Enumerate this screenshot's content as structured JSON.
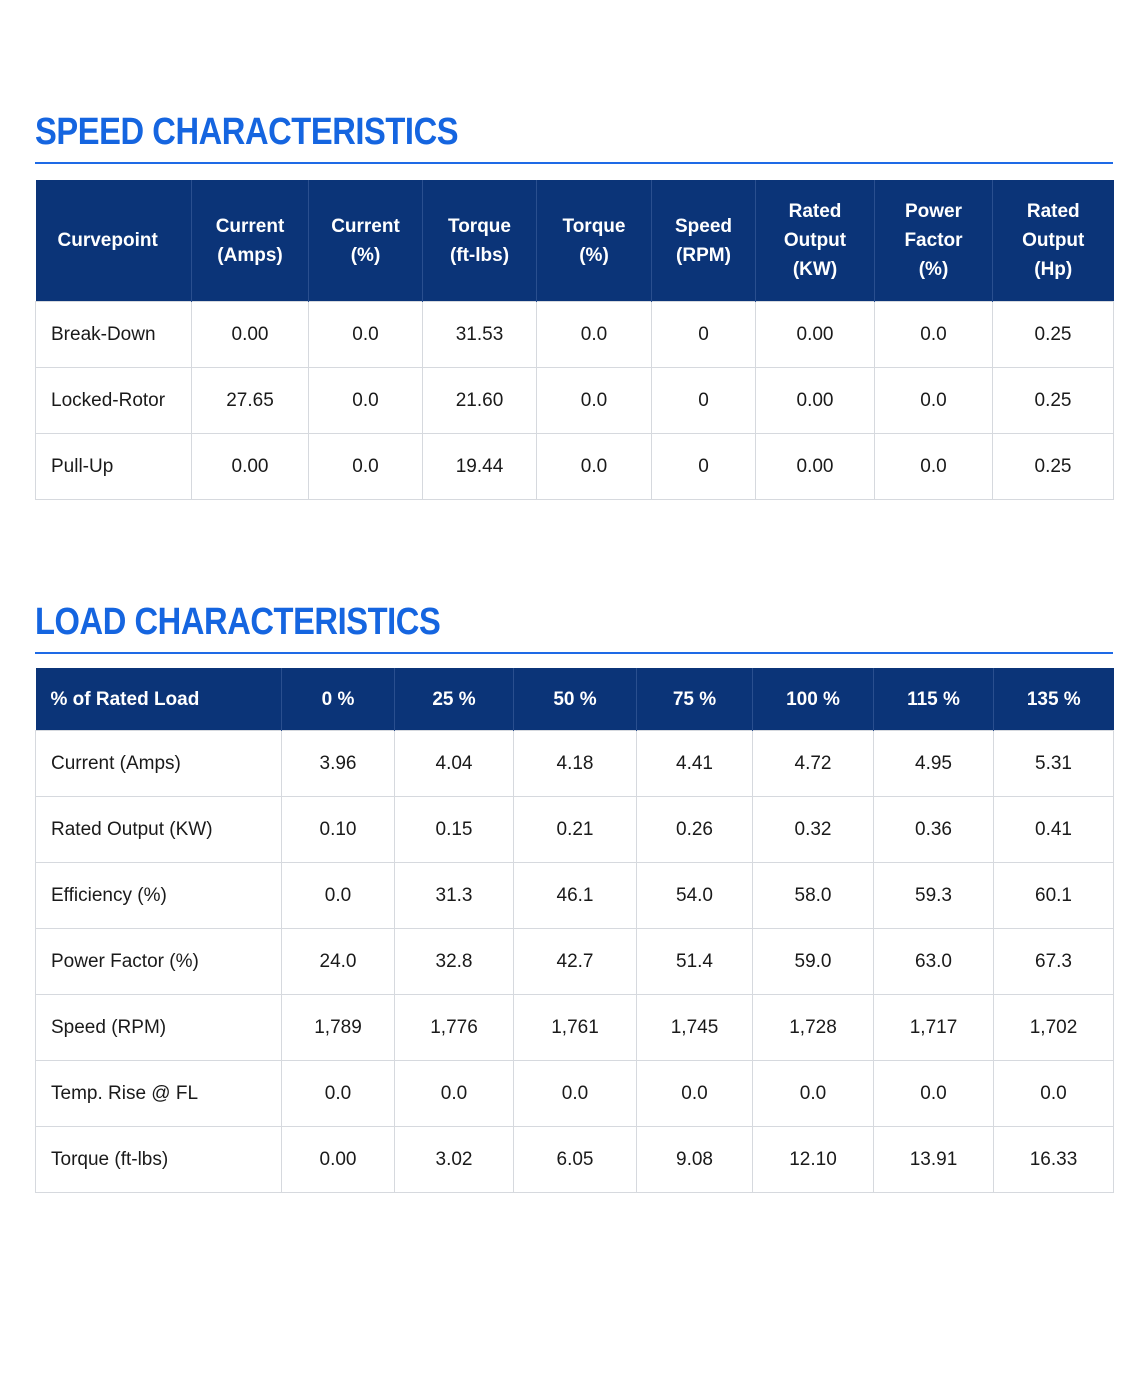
{
  "speed_section": {
    "title": "SPEED CHARACTERISTICS",
    "headers": [
      [
        "Curvepoint"
      ],
      [
        "Current",
        "(Amps)"
      ],
      [
        "Current",
        "(%)"
      ],
      [
        "Torque",
        "(ft-lbs)"
      ],
      [
        "Torque",
        "(%)"
      ],
      [
        "Speed",
        "(RPM)"
      ],
      [
        "Rated",
        "Output",
        "(KW)"
      ],
      [
        "Power",
        "Factor",
        "(%)"
      ],
      [
        "Rated",
        "Output",
        "(Hp)"
      ]
    ],
    "rows": [
      [
        "Break-Down",
        "0.00",
        "0.0",
        "31.53",
        "0.0",
        "0",
        "0.00",
        "0.0",
        "0.25"
      ],
      [
        "Locked-Rotor",
        "27.65",
        "0.0",
        "21.60",
        "0.0",
        "0",
        "0.00",
        "0.0",
        "0.25"
      ],
      [
        "Pull-Up",
        "0.00",
        "0.0",
        "19.44",
        "0.0",
        "0",
        "0.00",
        "0.0",
        "0.25"
      ]
    ]
  },
  "load_section": {
    "title": "LOAD CHARACTERISTICS",
    "headers": [
      "% of Rated Load",
      "0 %",
      "25 %",
      "50 %",
      "75 %",
      "100 %",
      "115 %",
      "135 %"
    ],
    "rows": [
      [
        "Current (Amps)",
        "3.96",
        "4.04",
        "4.18",
        "4.41",
        "4.72",
        "4.95",
        "5.31"
      ],
      [
        "Rated Output (KW)",
        "0.10",
        "0.15",
        "0.21",
        "0.26",
        "0.32",
        "0.36",
        "0.41"
      ],
      [
        "Efficiency (%)",
        "0.0",
        "31.3",
        "46.1",
        "54.0",
        "58.0",
        "59.3",
        "60.1"
      ],
      [
        "Power Factor (%)",
        "24.0",
        "32.8",
        "42.7",
        "51.4",
        "59.0",
        "63.0",
        "67.3"
      ],
      [
        "Speed (RPM)",
        "1,789",
        "1,776",
        "1,761",
        "1,745",
        "1,728",
        "1,717",
        "1,702"
      ],
      [
        "Temp. Rise @ FL",
        "0.0",
        "0.0",
        "0.0",
        "0.0",
        "0.0",
        "0.0",
        "0.0"
      ],
      [
        "Torque (ft-lbs)",
        "0.00",
        "3.02",
        "6.05",
        "9.08",
        "12.10",
        "13.91",
        "16.33"
      ]
    ]
  }
}
